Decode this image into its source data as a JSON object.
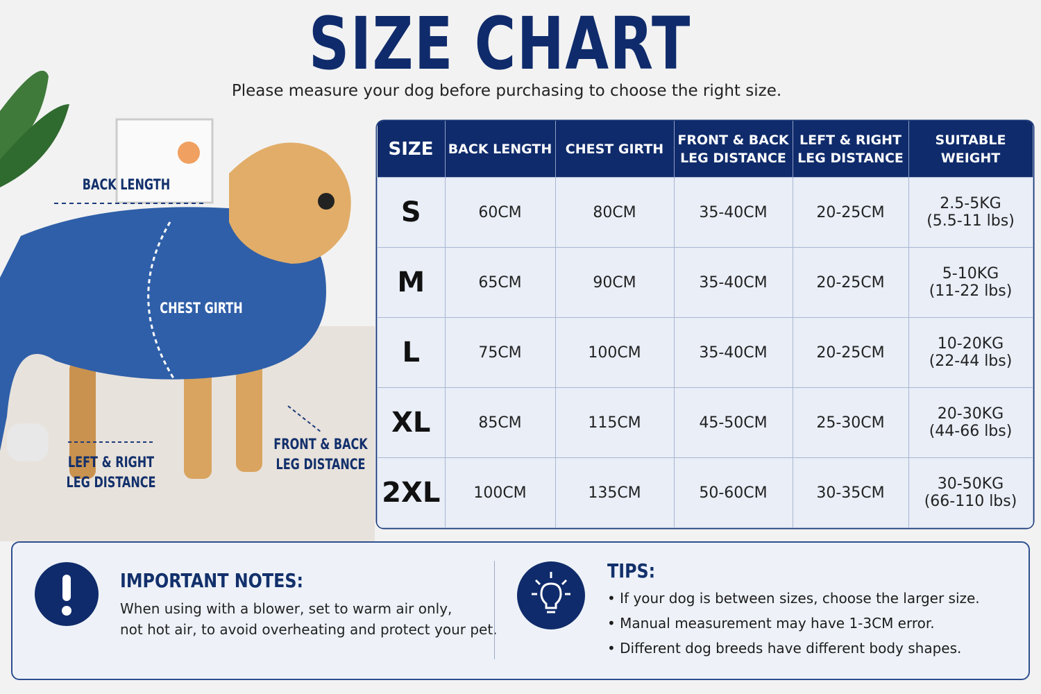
{
  "header": {
    "title": "SIZE CHART",
    "subtitle": "Please measure your dog before purchasing to choose the right size."
  },
  "diagram": {
    "labels": [
      {
        "name": "back-length",
        "lines": [
          "BACK LENGTH"
        ]
      },
      {
        "name": "chest-girth",
        "lines": [
          "CHEST GIRTH"
        ]
      },
      {
        "name": "left-right-leg-distance",
        "lines": [
          "LEFT & RIGHT",
          "LEG DISTANCE"
        ]
      },
      {
        "name": "front-back-leg-distance",
        "lines": [
          "FRONT & BACK",
          "LEG DISTANCE"
        ]
      }
    ]
  },
  "table": {
    "headers": [
      [
        "SIZE"
      ],
      [
        "BACK LENGTH"
      ],
      [
        "CHEST GIRTH"
      ],
      [
        "FRONT & BACK",
        "LEG DISTANCE"
      ],
      [
        "LEFT & RIGHT",
        "LEG DISTANCE"
      ],
      [
        "SUITABLE WEIGHT"
      ]
    ],
    "rows": [
      [
        "S",
        "60CM",
        "80CM",
        "35-40CM",
        "20-25CM",
        [
          "2.5-5KG",
          "(5.5-11 lbs)"
        ]
      ],
      [
        "M",
        "65CM",
        "90CM",
        "35-40CM",
        "20-25CM",
        [
          "5-10KG",
          "(11-22 lbs)"
        ]
      ],
      [
        "L",
        "75CM",
        "100CM",
        "35-40CM",
        "20-25CM",
        [
          "10-20KG",
          "(22-44 lbs)"
        ]
      ],
      [
        "XL",
        "85CM",
        "115CM",
        "45-50CM",
        "25-30CM",
        [
          "20-30KG",
          "(44-66 lbs)"
        ]
      ],
      [
        "2XL",
        "100CM",
        "135CM",
        "50-60CM",
        "30-35CM",
        [
          "30-50KG",
          "(66-110 lbs)"
        ]
      ]
    ]
  },
  "notes": {
    "title": "IMPORTANT NOTES:",
    "lines": [
      "When using with a blower, set to warm air only,",
      "not hot air, to avoid overheating and protect your pet."
    ]
  },
  "tips": {
    "title": "TIPS:",
    "items": [
      "If your dog is between sizes, choose the larger size.",
      "Manual measurement may have 1-3CM error.",
      "Different dog breeds have different body shapes."
    ]
  }
}
